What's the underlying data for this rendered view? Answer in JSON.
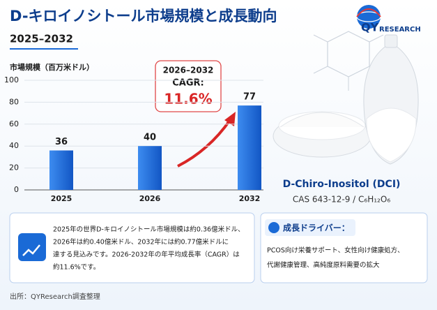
{
  "chart_data": {
    "type": "bar",
    "title": "D-キロイノシトール市場規模と成長動向",
    "subtitle": "2025–2032",
    "y_label": "市場規模（百万米ドル）",
    "categories": [
      "2025",
      "2026",
      "2032"
    ],
    "values": [
      36,
      40,
      77
    ],
    "color": "#1a6ad6",
    "ylim": [
      0,
      100
    ],
    "yticks": [
      0,
      20,
      40,
      60,
      80,
      100
    ],
    "grid": true,
    "annotation": {
      "period": "2026–2032",
      "label": "CAGR:",
      "value": "11.6%"
    }
  },
  "logo": {
    "main": "QY",
    "sub": "RESEARCH"
  },
  "product": {
    "name": "D-Chiro-Inositol (DCI)",
    "formula": "CAS 643-12-9 / C₆H₁₂O₆"
  },
  "summary": {
    "lines": [
      "2025年の世界D-キロイノシトール市場規模は約0.36億米ドル、",
      "2026年は約0.40億米ドル、2032年には約0.77億米ドルに",
      "達する見込みです。2026-2032年の年平均成長率（CAGR）は",
      "約11.6%です。"
    ]
  },
  "drivers": {
    "title": "成長ドライバー：",
    "lines": [
      "PCOS向け栄養サポート、女性向け健康処方、",
      "代謝健康管理、高純度原料需要の拡大"
    ]
  },
  "source": "出所：QYResearch調査整理"
}
